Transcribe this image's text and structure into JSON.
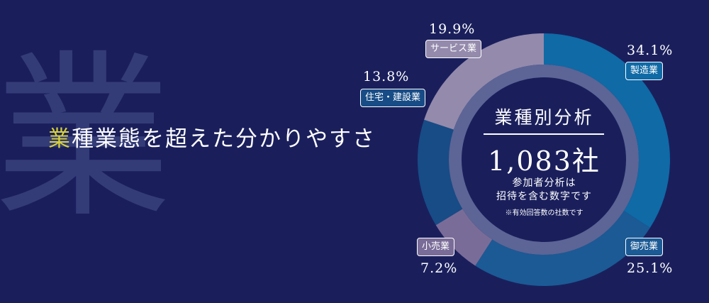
{
  "background_char": "業",
  "headline": {
    "accent": "業",
    "rest": "種業態を超えた分かりやすさ"
  },
  "colors": {
    "background": "#1a1f5c",
    "accent": "#d8d239",
    "inner_ring": "#5c6596"
  },
  "chart_data": {
    "type": "pie",
    "title": "業種別分析",
    "total_label": "1,083社",
    "notes": [
      "参加者分析は",
      "招待を含む数字です",
      "※有効回答数の社数です"
    ],
    "slices": [
      {
        "label": "製造業",
        "value": 34.1,
        "value_label": "34.1%",
        "color": "#0f6aa6"
      },
      {
        "label": "御売業",
        "value": 25.1,
        "value_label": "25.1%",
        "color": "#1b5a95"
      },
      {
        "label": "小売業",
        "value": 7.2,
        "value_label": "7.2%",
        "color": "#7a6c98"
      },
      {
        "label": "住宅・建設業",
        "value": 13.8,
        "value_label": "13.8%",
        "color": "#174c86"
      },
      {
        "label": "サービス業",
        "value": 19.9,
        "value_label": "19.9%",
        "color": "#948aac"
      }
    ]
  }
}
